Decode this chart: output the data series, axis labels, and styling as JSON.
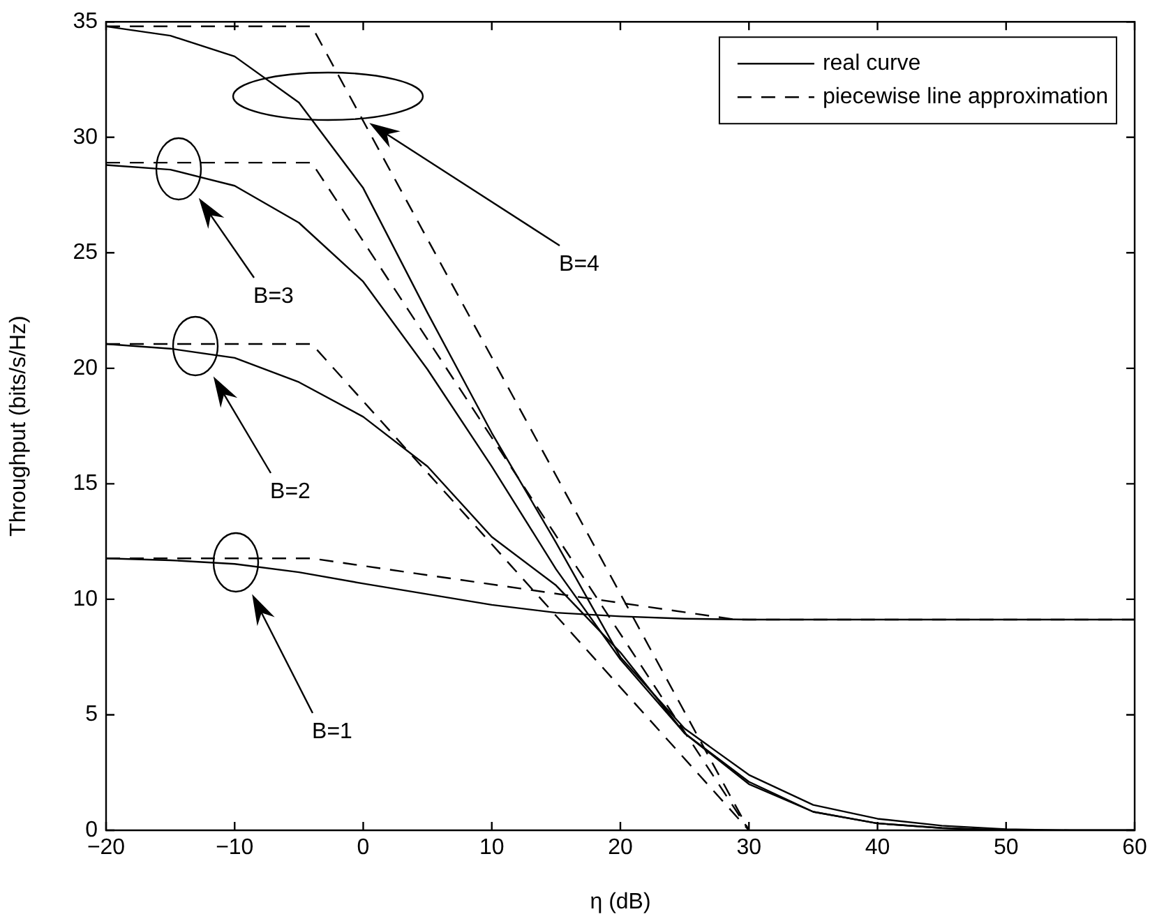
{
  "chart_data": {
    "type": "line",
    "xlabel": "η (dB)",
    "ylabel": "Throughput (bits/s/Hz)",
    "xlim": [
      -20,
      60
    ],
    "xticks": [
      -20,
      -10,
      0,
      10,
      20,
      30,
      40,
      50,
      60
    ],
    "ylim": [
      0,
      35
    ],
    "yticks": [
      0,
      5,
      10,
      15,
      20,
      25,
      30,
      35
    ],
    "grid": false,
    "legend": "top right",
    "marker": "none",
    "x": [
      -20,
      -15,
      -10,
      -5,
      0,
      5,
      10,
      15,
      20,
      25,
      30,
      35,
      40,
      45,
      50,
      55,
      60
    ],
    "series": [
      {
        "name": "real curve",
        "color": "#000000",
        "line_style": "solid",
        "values": [
          11.77,
          11.69,
          11.53,
          11.17,
          10.68,
          10.22,
          9.76,
          9.42,
          9.26,
          9.16,
          9.12,
          9.12,
          9.12,
          9.12,
          9.12,
          9.12,
          9.12
        ]
      },
      {
        "color": "#000000",
        "line_style": "solid",
        "values": [
          21.05,
          20.85,
          20.45,
          19.4,
          17.9,
          15.75,
          12.7,
          10.6,
          7.7,
          4.2,
          2.0,
          0.8,
          0.3,
          0.1,
          0,
          0,
          0
        ]
      },
      {
        "color": "#000000",
        "line_style": "solid",
        "values": [
          28.8,
          28.6,
          27.9,
          26.3,
          23.75,
          19.95,
          15.75,
          11.3,
          7.4,
          4.2,
          2.1,
          0.8,
          0.3,
          0.1,
          0,
          0,
          0
        ]
      },
      {
        "color": "#000000",
        "line_style": "solid",
        "values": [
          34.8,
          34.4,
          33.5,
          31.5,
          27.8,
          22.4,
          17.2,
          12.45,
          7.5,
          4.4,
          2.4,
          1.1,
          0.5,
          0.2,
          0.05,
          0,
          0
        ]
      },
      {
        "name": "piecewise line approximation",
        "color": "#000000",
        "line_style": "dashed",
        "x": [
          -20,
          -4,
          29,
          60
        ],
        "values": [
          11.77,
          11.77,
          9.12,
          9.12
        ]
      },
      {
        "color": "#000000",
        "line_style": "dashed",
        "x": [
          -20,
          -4,
          30
        ],
        "values": [
          21.05,
          21.05,
          0
        ]
      },
      {
        "color": "#000000",
        "line_style": "dashed",
        "x": [
          -20,
          -4,
          30
        ],
        "values": [
          28.9,
          28.9,
          0
        ]
      },
      {
        "color": "#000000",
        "line_style": "dashed",
        "x": [
          -20,
          -4,
          30
        ],
        "values": [
          34.8,
          34.8,
          0
        ]
      }
    ],
    "annotations": [
      "B=1",
      "B=2",
      "B=3",
      "B=4"
    ]
  }
}
